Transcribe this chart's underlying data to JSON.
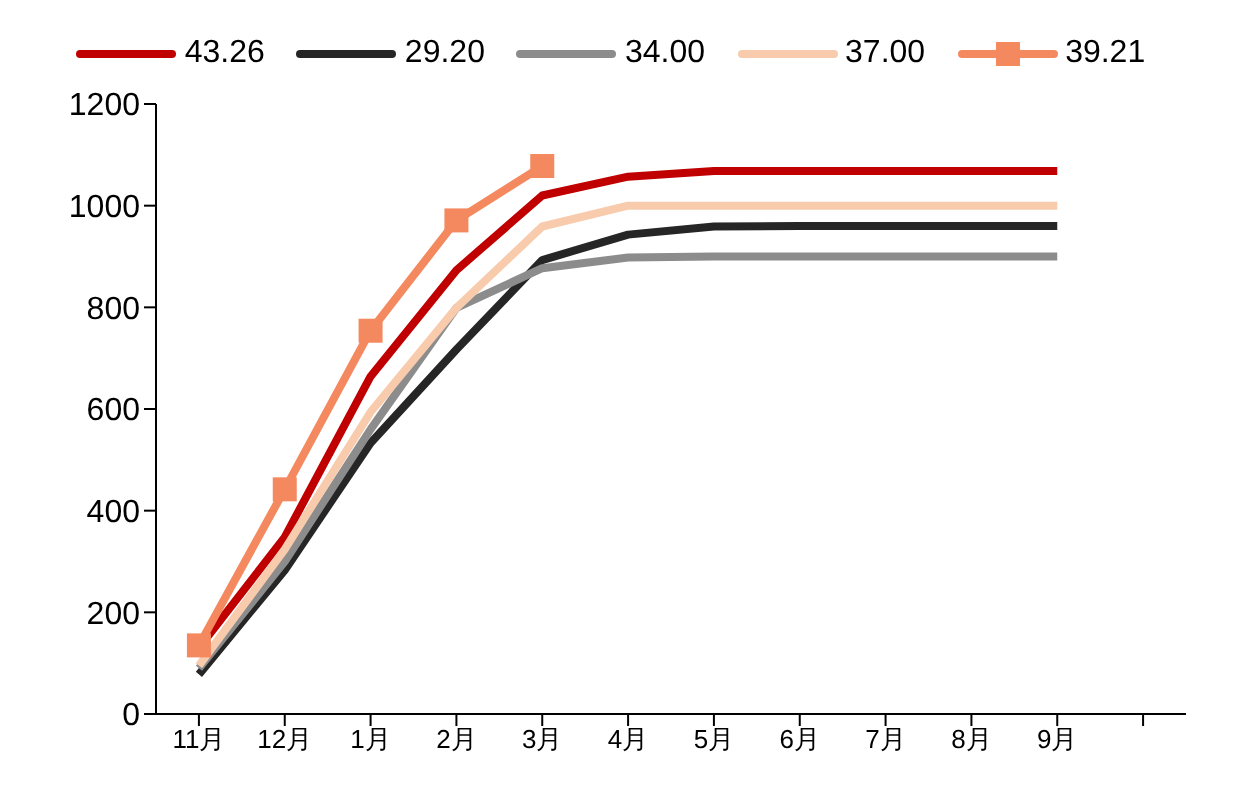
{
  "chart_data": {
    "type": "line",
    "categories": [
      "11月",
      "12月",
      "1月",
      "2月",
      "3月",
      "4月",
      "5月",
      "6月",
      "7月",
      "8月",
      "9月",
      null
    ],
    "series": [
      {
        "name": "43.26",
        "color": "#c00000",
        "values": [
          130,
          348,
          664,
          873,
          1020,
          1057,
          1068,
          1068,
          1068,
          1068,
          1068,
          null
        ]
      },
      {
        "name": "29.20",
        "color": "#262626",
        "values": [
          78,
          283,
          533,
          717,
          893,
          943,
          959,
          960,
          960,
          960,
          960,
          null
        ]
      },
      {
        "name": "34.00",
        "color": "#8c8c8c",
        "values": [
          90,
          300,
          560,
          799,
          877,
          898,
          900,
          900,
          900,
          900,
          900,
          null
        ]
      },
      {
        "name": "37.00",
        "color": "#f8cbad",
        "values": [
          95,
          324,
          594,
          799,
          959,
          1000,
          1000,
          1000,
          1000,
          1000,
          1000,
          null
        ]
      },
      {
        "name": "39.21",
        "color": "#f4895f",
        "marker": "square",
        "values": [
          135,
          442,
          754,
          971,
          1078,
          null,
          null,
          null,
          null,
          null,
          null,
          null
        ]
      }
    ],
    "ylim": [
      0,
      1200
    ],
    "yticks": [
      0,
      200,
      400,
      600,
      800,
      1000,
      1200
    ],
    "grid": false,
    "legend": "top",
    "marker": "none",
    "line_style": "solid"
  }
}
